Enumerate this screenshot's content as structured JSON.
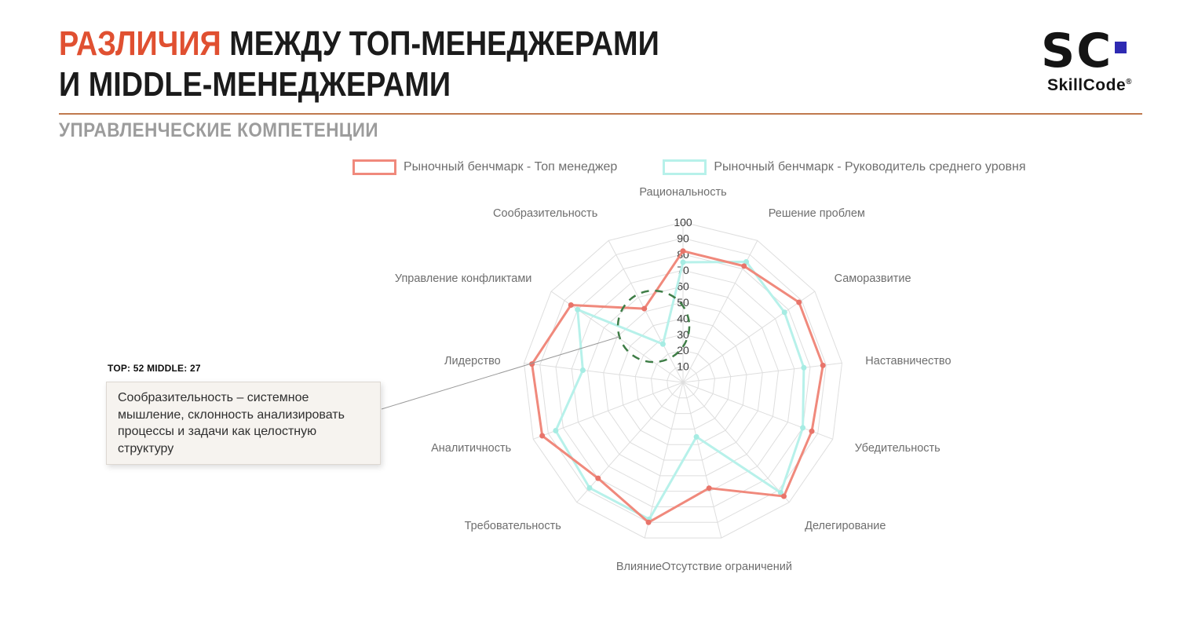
{
  "slide": {
    "title": {
      "accent": "РАЗЛИЧИЯ",
      "rest": "МЕЖДУ ТОП-МЕНЕДЖЕРАМИ",
      "line2": "И MIDDLE-МЕНЕДЖЕРАМИ",
      "accent_color": "#e05031"
    },
    "subtitle": "УПРАВЛЕНЧЕСКИЕ КОМПЕТЕНЦИИ"
  },
  "logo": {
    "mark": "SC",
    "brand": "SkillCode",
    "registered": "®",
    "mark_color": "#141414",
    "square_color": "#2e2ab2"
  },
  "legend": {
    "items": [
      {
        "label": "Рыночный бенчмарк - Топ менеджер",
        "color": "#f0897c"
      },
      {
        "label": "Рыночный бенчмарк - Руководитель среднего уровня",
        "color": "#b7f1ea"
      }
    ]
  },
  "callout": {
    "stats": "TOP: 52 MIDDLE: 27",
    "text": "Сообразительность – системное мышление, склонность анализировать процессы и задачи как целостную структуру"
  },
  "chart_data": {
    "type": "radar",
    "title": "",
    "legend_position": "top",
    "categories": [
      "Рациональность",
      "Решение проблем",
      "Саморазвитие",
      "Наставничество",
      "Убедительность",
      "Делегирование",
      "Отсутствие ограничений",
      "Влияние",
      "Требовательность",
      "Аналитичность",
      "Лидерство",
      "Управление конфликтами",
      "Сообразительность"
    ],
    "scale": {
      "min": 0,
      "max": 100,
      "step": 10,
      "tick_labels": [
        "10",
        "20",
        "30",
        "40",
        "50",
        "60",
        "70",
        "80",
        "90",
        "100"
      ]
    },
    "series": [
      {
        "name": "Рыночный бенчмарк - Топ менеджер",
        "color": "#f0897c",
        "dot_color": "#e8746a",
        "values": [
          82,
          82,
          88,
          88,
          86,
          95,
          68,
          90,
          80,
          94,
          95,
          85,
          52
        ]
      },
      {
        "name": "Рыночный бенчмарк - Руководитель среднего уровня",
        "color": "#b7f1ea",
        "dot_color": "#a6ece3",
        "values": [
          75,
          85,
          77,
          76,
          80,
          92,
          35,
          88,
          88,
          85,
          63,
          80,
          27
        ]
      }
    ],
    "grid_color": "#dedede",
    "highlight": {
      "category": "Сообразительность",
      "values": [
        52,
        27
      ],
      "color": "#3e7d46"
    }
  }
}
